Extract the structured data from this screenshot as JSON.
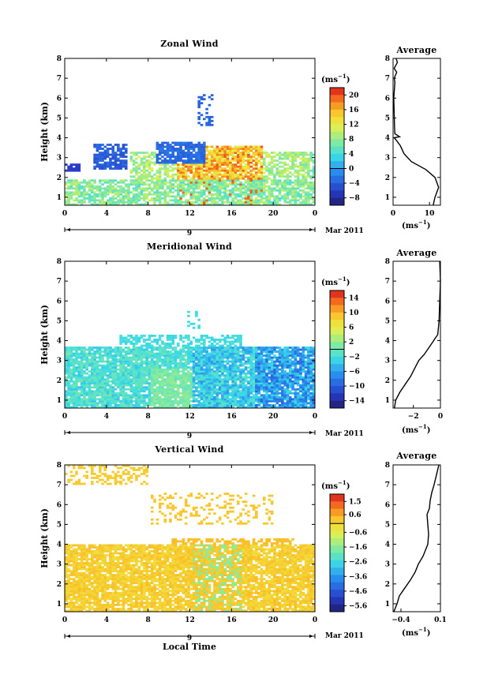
{
  "panels": [
    {
      "key": "zonal",
      "title": "Zonal Wind",
      "ylabel": "Height (km)",
      "yticks": [
        "1",
        "2",
        "3",
        "4",
        "5",
        "6",
        "7",
        "8"
      ],
      "xticks": [
        "0",
        "4",
        "8",
        "12",
        "16",
        "20",
        "0"
      ],
      "date_day": "9",
      "date_month": "Mar 2011",
      "colorbar": {
        "unit": "(ms",
        "unit_exp": "−1",
        "labels": [
          "20",
          "16",
          "12",
          "8",
          "4",
          "0",
          "−4",
          "−8"
        ],
        "range": [
          -10,
          22
        ]
      },
      "average": {
        "title": "Average",
        "xticks": [
          "0",
          "10"
        ],
        "xlim": [
          0,
          13
        ],
        "unit": "(ms",
        "unit_exp": "−1"
      },
      "chart_data": {
        "type": "heatmap",
        "x": "local time (h)",
        "xlim": [
          0,
          24
        ],
        "ylim": [
          0.6,
          8
        ],
        "profile": [
          [
            0.6,
            11
          ],
          [
            1.0,
            11.5
          ],
          [
            1.5,
            12.5
          ],
          [
            2.0,
            11.5
          ],
          [
            2.4,
            9
          ],
          [
            2.8,
            5
          ],
          [
            3.2,
            3
          ],
          [
            3.6,
            2
          ],
          [
            3.85,
            1
          ],
          [
            4.0,
            0.3
          ],
          [
            4.05,
            1.8
          ],
          [
            4.2,
            0.5
          ],
          [
            4.6,
            0.4
          ],
          [
            5.2,
            0.3
          ],
          [
            6.0,
            0.2
          ],
          [
            6.8,
            0.5
          ],
          [
            7.0,
            0.3
          ],
          [
            7.3,
            1.0
          ],
          [
            7.5,
            0.3
          ],
          [
            7.8,
            1.2
          ],
          [
            8.0,
            0.8
          ]
        ]
      }
    },
    {
      "key": "meridional",
      "title": "Meridional Wind",
      "ylabel": "Height (km)",
      "yticks": [
        "1",
        "2",
        "3",
        "4",
        "5",
        "6",
        "7",
        "8"
      ],
      "xticks": [
        "0",
        "4",
        "8",
        "12",
        "16",
        "20",
        "0"
      ],
      "date_day": "9",
      "date_month": "Mar 2011",
      "colorbar": {
        "unit": "(ms",
        "unit_exp": "−1",
        "labels": [
          "14",
          "10",
          "6",
          "2",
          "−2",
          "−6",
          "−10",
          "−14"
        ],
        "range": [
          -16,
          16
        ]
      },
      "average": {
        "title": "Average",
        "xticks": [
          "−2",
          "0"
        ],
        "xlim": [
          -3.5,
          0
        ],
        "unit": "(ms",
        "unit_exp": "−1"
      },
      "chart_data": {
        "type": "heatmap",
        "x": "local time (h)",
        "xlim": [
          0,
          24
        ],
        "ylim": [
          0.6,
          8
        ],
        "profile": [
          [
            0.6,
            -3.4
          ],
          [
            1.0,
            -3.3
          ],
          [
            1.4,
            -3.0
          ],
          [
            1.8,
            -2.6
          ],
          [
            2.2,
            -2.2
          ],
          [
            2.6,
            -1.9
          ],
          [
            3.0,
            -1.6
          ],
          [
            3.3,
            -1.2
          ],
          [
            3.6,
            -0.9
          ],
          [
            3.9,
            -0.6
          ],
          [
            4.1,
            -0.4
          ],
          [
            4.3,
            -0.2
          ],
          [
            5.0,
            -0.1
          ],
          [
            6.0,
            -0.05
          ],
          [
            7.0,
            0.0
          ],
          [
            8.0,
            -0.05
          ]
        ]
      }
    },
    {
      "key": "vertical",
      "title": "Vertical Wind",
      "ylabel": "Height (km)",
      "yticks": [
        "1",
        "2",
        "3",
        "4",
        "5",
        "6",
        "7",
        "8"
      ],
      "xticks": [
        "0",
        "4",
        "8",
        "12",
        "16",
        "20",
        "0"
      ],
      "date_day": "9",
      "date_month": "Mar 2011",
      "xlabel": "Local Time",
      "colorbar": {
        "unit": "(ms",
        "unit_exp": "−1",
        "labels": [
          "1.5",
          "0.6",
          "−0.6",
          "−1.6",
          "−2.6",
          "−3.6",
          "−4.6",
          "−5.6"
        ],
        "range": [
          -6,
          2
        ]
      },
      "average": {
        "title": "Average",
        "xticks": [
          "−0.4",
          "0.1"
        ],
        "xlim": [
          -0.5,
          0.1
        ],
        "unit": "(ms",
        "unit_exp": "−1"
      },
      "chart_data": {
        "type": "heatmap",
        "x": "local time (h)",
        "xlim": [
          0,
          24
        ],
        "ylim": [
          0.6,
          8
        ],
        "profile": [
          [
            0.6,
            -0.49
          ],
          [
            1.0,
            -0.45
          ],
          [
            1.4,
            -0.42
          ],
          [
            1.8,
            -0.35
          ],
          [
            2.2,
            -0.28
          ],
          [
            2.6,
            -0.22
          ],
          [
            3.0,
            -0.18
          ],
          [
            3.4,
            -0.12
          ],
          [
            3.8,
            -0.08
          ],
          [
            4.0,
            -0.06
          ],
          [
            4.5,
            -0.05
          ],
          [
            5.0,
            -0.06
          ],
          [
            5.5,
            -0.07
          ],
          [
            5.8,
            -0.04
          ],
          [
            6.2,
            -0.03
          ],
          [
            6.6,
            -0.01
          ],
          [
            7.0,
            0.02
          ],
          [
            7.5,
            0.05
          ],
          [
            8.0,
            0.08
          ]
        ]
      }
    }
  ]
}
